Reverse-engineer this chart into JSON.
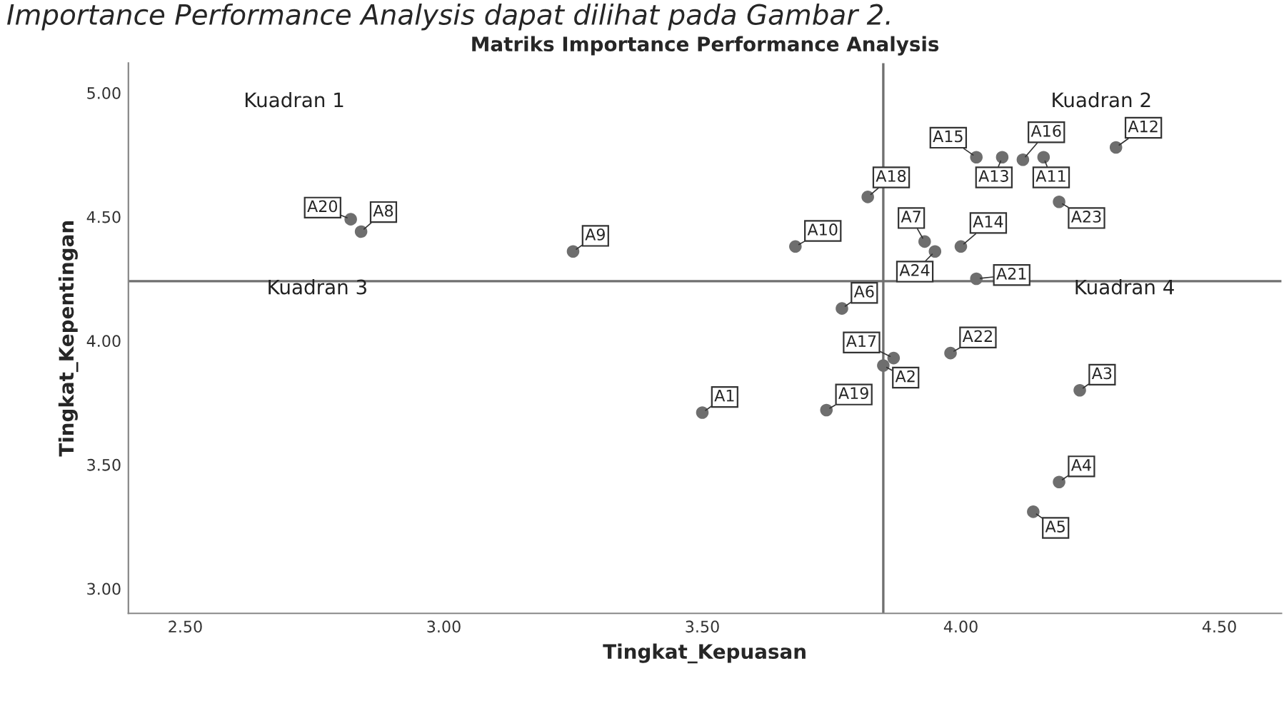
{
  "chart_data": {
    "type": "scatter",
    "title": "Matriks Importance Performance Analysis",
    "xlabel": "Tingkat_Kepuasan",
    "ylabel": "Tingkat_Kepentingan",
    "annotations": [
      "Importance Performance Analysis dapat dilihat pada Gambar 2.",
      "Kuadran 1",
      "Kuadran 2",
      "Kuadran 3",
      "Kuadran 4"
    ],
    "xlim": [
      2.39,
      4.62
    ],
    "ylim": [
      2.9,
      5.12
    ],
    "xticks": [
      {
        "value": 2.5,
        "label": "2.50"
      },
      {
        "value": 3.0,
        "label": "3.00"
      },
      {
        "value": 3.5,
        "label": "3.50"
      },
      {
        "value": 4.0,
        "label": "4.00"
      },
      {
        "value": 4.5,
        "label": "4.50"
      }
    ],
    "yticks": [
      {
        "value": 3.0,
        "label": "3.00"
      },
      {
        "value": 3.5,
        "label": "3.50"
      },
      {
        "value": 4.0,
        "label": "4.00"
      },
      {
        "value": 4.5,
        "label": "4.50"
      },
      {
        "value": 5.0,
        "label": "5.00"
      }
    ],
    "grid": false,
    "marker": "circle",
    "ref_lines": [
      {
        "axis": "x",
        "value": 3.85,
        "color": "#707070"
      },
      {
        "axis": "y",
        "value": 4.24,
        "color": "#707070"
      }
    ],
    "series": [
      {
        "color": "#6e6e6e",
        "x": [
          3.5,
          3.85,
          4.23,
          4.19,
          4.14,
          3.77,
          3.93,
          2.84,
          3.25,
          3.68,
          4.16,
          4.3,
          4.08,
          4.0,
          4.03,
          4.12,
          3.87,
          3.82,
          3.74,
          2.82,
          4.03,
          3.98,
          4.19,
          3.95
        ],
        "values": [
          3.71,
          3.9,
          3.8,
          3.43,
          3.31,
          4.13,
          4.4,
          4.44,
          4.36,
          4.38,
          4.74,
          4.78,
          4.74,
          4.38,
          4.74,
          4.73,
          3.93,
          4.58,
          3.72,
          4.49,
          4.25,
          3.95,
          4.56,
          4.36
        ],
        "value_labels": [
          "A1",
          "A2",
          "A3",
          "A4",
          "A5",
          "A6",
          "A7",
          "A8",
          "A9",
          "A10",
          "A11",
          "A12",
          "A13",
          "A14",
          "A15",
          "A16",
          "A17",
          "A18",
          "A19",
          "A20",
          "A21",
          "A22",
          "A23",
          "A24"
        ]
      }
    ]
  }
}
